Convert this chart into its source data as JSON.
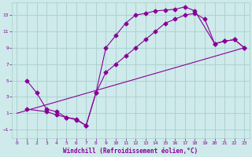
{
  "xlabel": "Windchill (Refroidissement éolien,°C)",
  "bg_color": "#ceeaea",
  "grid_color": "#aacece",
  "line_color": "#880099",
  "xlim": [
    -0.5,
    23.5
  ],
  "ylim": [
    -2,
    14.5
  ],
  "xticks": [
    0,
    1,
    2,
    3,
    4,
    5,
    6,
    7,
    8,
    9,
    10,
    11,
    12,
    13,
    14,
    15,
    16,
    17,
    18,
    19,
    20,
    21,
    22,
    23
  ],
  "yticks": [
    -1,
    1,
    3,
    5,
    7,
    9,
    11,
    13
  ],
  "line1_x": [
    1,
    2,
    3,
    4,
    5,
    6,
    7,
    8,
    9,
    10,
    11,
    12,
    13,
    14,
    15,
    16,
    17,
    18,
    20,
    21,
    22,
    23
  ],
  "line1_y": [
    5,
    3.5,
    1.5,
    1.2,
    0.5,
    0.3,
    -0.5,
    3.5,
    9.0,
    10.5,
    12.0,
    13.0,
    13.2,
    13.5,
    13.6,
    13.7,
    14.0,
    13.5,
    9.5,
    9.8,
    10.0,
    9.0
  ],
  "line2_x": [
    1,
    3,
    4,
    5,
    6,
    7,
    8,
    9,
    10,
    11,
    12,
    13,
    14,
    15,
    16,
    17,
    18,
    19,
    20,
    21,
    22,
    23
  ],
  "line2_y": [
    1.5,
    1.2,
    0.8,
    0.5,
    0.2,
    -0.5,
    3.5,
    6.0,
    7.0,
    8.0,
    9.0,
    10.0,
    11.0,
    12.0,
    12.5,
    13.0,
    13.2,
    12.5,
    9.5,
    9.8,
    10.0,
    9.0
  ],
  "line3_x": [
    0,
    23
  ],
  "line3_y": [
    1,
    9.0
  ],
  "tick_fontsize": 4.5,
  "label_fontsize": 5.5
}
